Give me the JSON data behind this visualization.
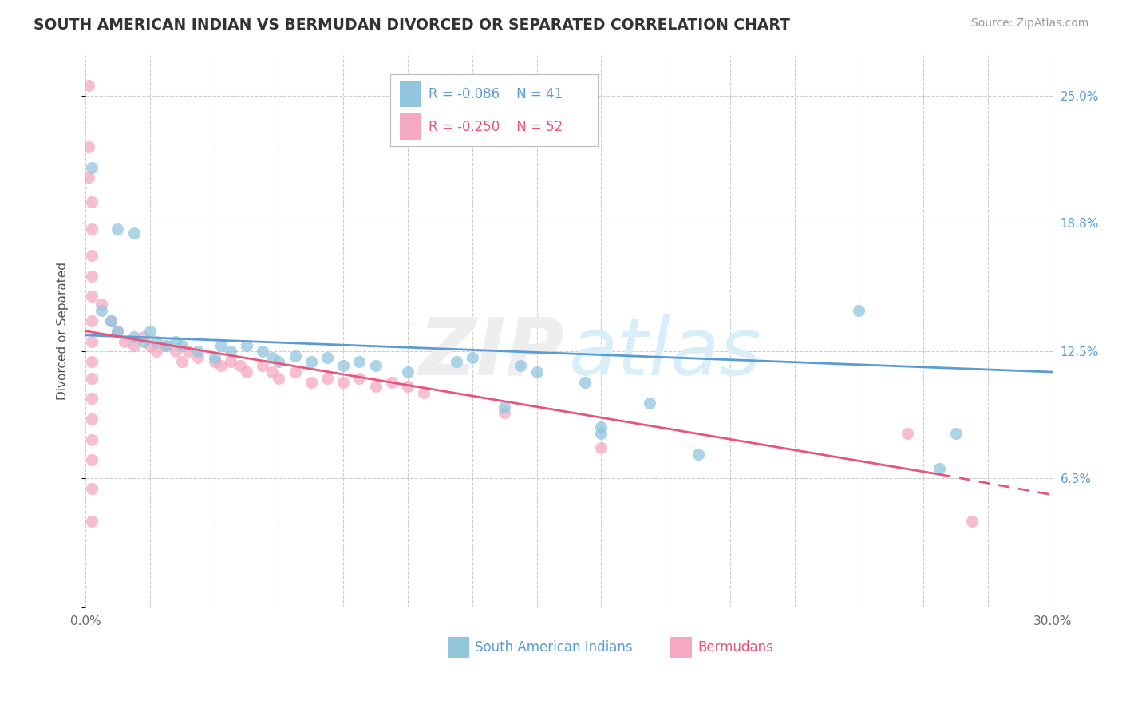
{
  "title": "SOUTH AMERICAN INDIAN VS BERMUDAN DIVORCED OR SEPARATED CORRELATION CHART",
  "source": "Source: ZipAtlas.com",
  "ylabel": "Divorced or Separated",
  "xlim": [
    0,
    0.3
  ],
  "ylim": [
    0.0,
    0.27
  ],
  "legend_r1": "-0.086",
  "legend_n1": "41",
  "legend_r2": "-0.250",
  "legend_n2": "52",
  "legend_label1": "South American Indians",
  "legend_label2": "Bermudans",
  "blue_color": "#92c5de",
  "pink_color": "#f4a9c0",
  "blue_line_color": "#5b9bd5",
  "pink_line_color": "#e8547a",
  "blue_scatter": [
    [
      0.002,
      0.215
    ],
    [
      0.01,
      0.185
    ],
    [
      0.015,
      0.183
    ],
    [
      0.005,
      0.145
    ],
    [
      0.008,
      0.14
    ],
    [
      0.01,
      0.135
    ],
    [
      0.015,
      0.132
    ],
    [
      0.018,
      0.13
    ],
    [
      0.02,
      0.135
    ],
    [
      0.022,
      0.13
    ],
    [
      0.025,
      0.128
    ],
    [
      0.028,
      0.13
    ],
    [
      0.03,
      0.128
    ],
    [
      0.035,
      0.125
    ],
    [
      0.04,
      0.122
    ],
    [
      0.042,
      0.128
    ],
    [
      0.045,
      0.125
    ],
    [
      0.05,
      0.128
    ],
    [
      0.055,
      0.125
    ],
    [
      0.058,
      0.122
    ],
    [
      0.06,
      0.12
    ],
    [
      0.065,
      0.123
    ],
    [
      0.07,
      0.12
    ],
    [
      0.075,
      0.122
    ],
    [
      0.08,
      0.118
    ],
    [
      0.085,
      0.12
    ],
    [
      0.09,
      0.118
    ],
    [
      0.1,
      0.115
    ],
    [
      0.115,
      0.12
    ],
    [
      0.12,
      0.122
    ],
    [
      0.135,
      0.118
    ],
    [
      0.14,
      0.115
    ],
    [
      0.155,
      0.11
    ],
    [
      0.16,
      0.085
    ],
    [
      0.24,
      0.145
    ],
    [
      0.175,
      0.1
    ],
    [
      0.265,
      0.068
    ],
    [
      0.27,
      0.085
    ],
    [
      0.13,
      0.098
    ],
    [
      0.16,
      0.088
    ],
    [
      0.19,
      0.075
    ]
  ],
  "pink_scatter": [
    [
      0.001,
      0.255
    ],
    [
      0.001,
      0.225
    ],
    [
      0.001,
      0.21
    ],
    [
      0.002,
      0.198
    ],
    [
      0.002,
      0.185
    ],
    [
      0.002,
      0.172
    ],
    [
      0.002,
      0.162
    ],
    [
      0.002,
      0.152
    ],
    [
      0.002,
      0.14
    ],
    [
      0.002,
      0.13
    ],
    [
      0.002,
      0.12
    ],
    [
      0.002,
      0.112
    ],
    [
      0.002,
      0.102
    ],
    [
      0.002,
      0.092
    ],
    [
      0.002,
      0.082
    ],
    [
      0.002,
      0.072
    ],
    [
      0.002,
      0.058
    ],
    [
      0.002,
      0.042
    ],
    [
      0.005,
      0.148
    ],
    [
      0.008,
      0.14
    ],
    [
      0.01,
      0.135
    ],
    [
      0.012,
      0.13
    ],
    [
      0.015,
      0.128
    ],
    [
      0.018,
      0.132
    ],
    [
      0.02,
      0.128
    ],
    [
      0.022,
      0.125
    ],
    [
      0.025,
      0.128
    ],
    [
      0.028,
      0.125
    ],
    [
      0.03,
      0.12
    ],
    [
      0.032,
      0.125
    ],
    [
      0.035,
      0.122
    ],
    [
      0.04,
      0.12
    ],
    [
      0.042,
      0.118
    ],
    [
      0.045,
      0.12
    ],
    [
      0.048,
      0.118
    ],
    [
      0.05,
      0.115
    ],
    [
      0.055,
      0.118
    ],
    [
      0.058,
      0.115
    ],
    [
      0.06,
      0.112
    ],
    [
      0.065,
      0.115
    ],
    [
      0.07,
      0.11
    ],
    [
      0.075,
      0.112
    ],
    [
      0.08,
      0.11
    ],
    [
      0.085,
      0.112
    ],
    [
      0.09,
      0.108
    ],
    [
      0.095,
      0.11
    ],
    [
      0.1,
      0.108
    ],
    [
      0.105,
      0.105
    ],
    [
      0.13,
      0.095
    ],
    [
      0.16,
      0.078
    ],
    [
      0.255,
      0.085
    ],
    [
      0.275,
      0.042
    ]
  ],
  "blue_trendline": [
    [
      0.0,
      0.133
    ],
    [
      0.3,
      0.115
    ]
  ],
  "pink_trendline": [
    [
      0.0,
      0.135
    ],
    [
      0.265,
      0.065
    ]
  ],
  "pink_trendline_dashed": [
    [
      0.265,
      0.065
    ],
    [
      0.3,
      0.055
    ]
  ],
  "yticks": [
    0.0,
    0.063,
    0.125,
    0.188,
    0.25
  ],
  "ytick_labels": [
    "",
    "6.3%",
    "12.5%",
    "18.8%",
    "25.0%"
  ]
}
